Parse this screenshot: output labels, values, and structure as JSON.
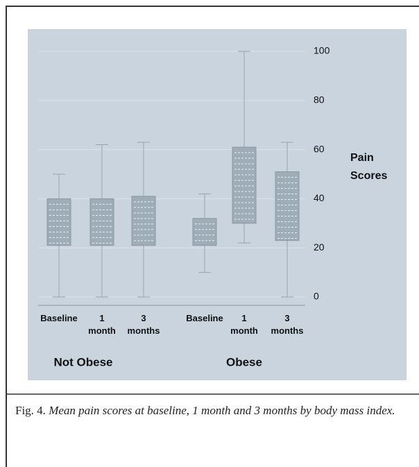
{
  "chart_data": {
    "type": "box",
    "y_label_lines": [
      "Pain",
      "Scores"
    ],
    "ylim": [
      0,
      100
    ],
    "yticks": [
      0,
      20,
      40,
      60,
      80,
      100
    ],
    "grid": true,
    "color": "#9fadb9",
    "groups": [
      {
        "name": "Not Obese",
        "categories": [
          "Baseline",
          "1 month",
          "3 months"
        ],
        "boxes": [
          {
            "min": 0,
            "q1": 21,
            "q3": 40,
            "max": 50
          },
          {
            "min": 0,
            "q1": 21,
            "q3": 40,
            "max": 62
          },
          {
            "min": 0,
            "q1": 21,
            "q3": 41,
            "max": 63
          }
        ]
      },
      {
        "name": "Obese",
        "categories": [
          "Baseline",
          "1 month",
          "3 months"
        ],
        "boxes": [
          {
            "min": 10,
            "q1": 21,
            "q3": 32,
            "max": 42
          },
          {
            "min": 22,
            "q1": 30,
            "q3": 61,
            "max": 100
          },
          {
            "min": 0,
            "q1": 23,
            "q3": 51,
            "max": 63
          }
        ]
      }
    ]
  },
  "caption": {
    "label": "Fig. 4.",
    "text": "Mean pain scores at baseline, 1 month and 3 months by body mass index."
  }
}
